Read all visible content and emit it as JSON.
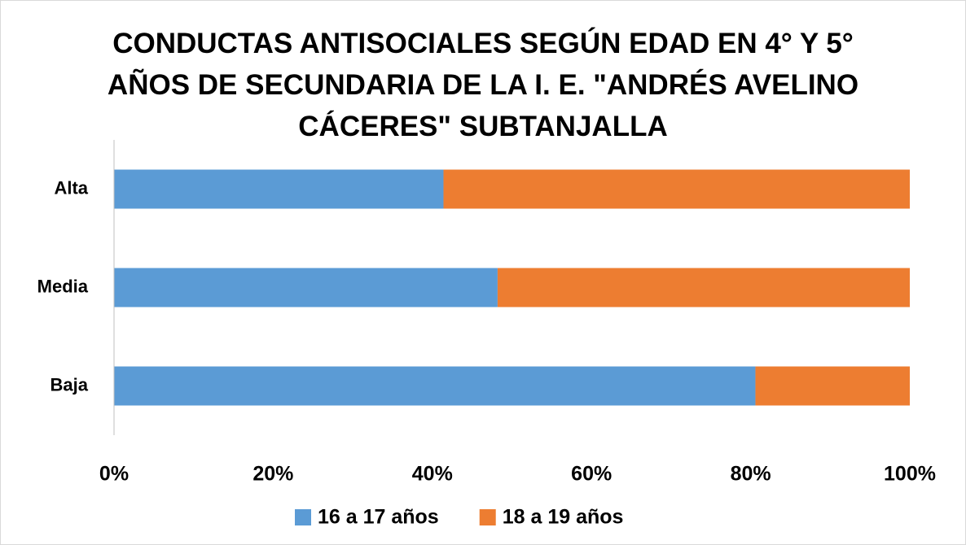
{
  "chart_data": {
    "type": "bar",
    "orientation": "horizontal",
    "stacked": true,
    "title": "CONDUCTAS ANTISOCIALES SEGÚN EDAD EN 4° Y 5° AÑOS DE SECUNDARIA DE LA I. E. \"ANDRÉS AVELINO CÁCERES\" SUBTANJALLA",
    "categories": [
      "Alta",
      "Media",
      "Baja"
    ],
    "series": [
      {
        "name": "16 a 17 años",
        "color": "#5b9bd5",
        "values": [
          41.4,
          48.2,
          80.6
        ]
      },
      {
        "name": "18 a 19 años",
        "color": "#ed7d31",
        "values": [
          58.6,
          51.8,
          19.4
        ]
      }
    ],
    "xlim": [
      0,
      100
    ],
    "xticks": [
      {
        "value": 0,
        "label": "0%"
      },
      {
        "value": 20,
        "label": "20%"
      },
      {
        "value": 40,
        "label": "40%"
      },
      {
        "value": 60,
        "label": "60%"
      },
      {
        "value": 80,
        "label": "80%"
      },
      {
        "value": 100,
        "label": "100%"
      }
    ],
    "legend": "bottom",
    "grid": false
  }
}
